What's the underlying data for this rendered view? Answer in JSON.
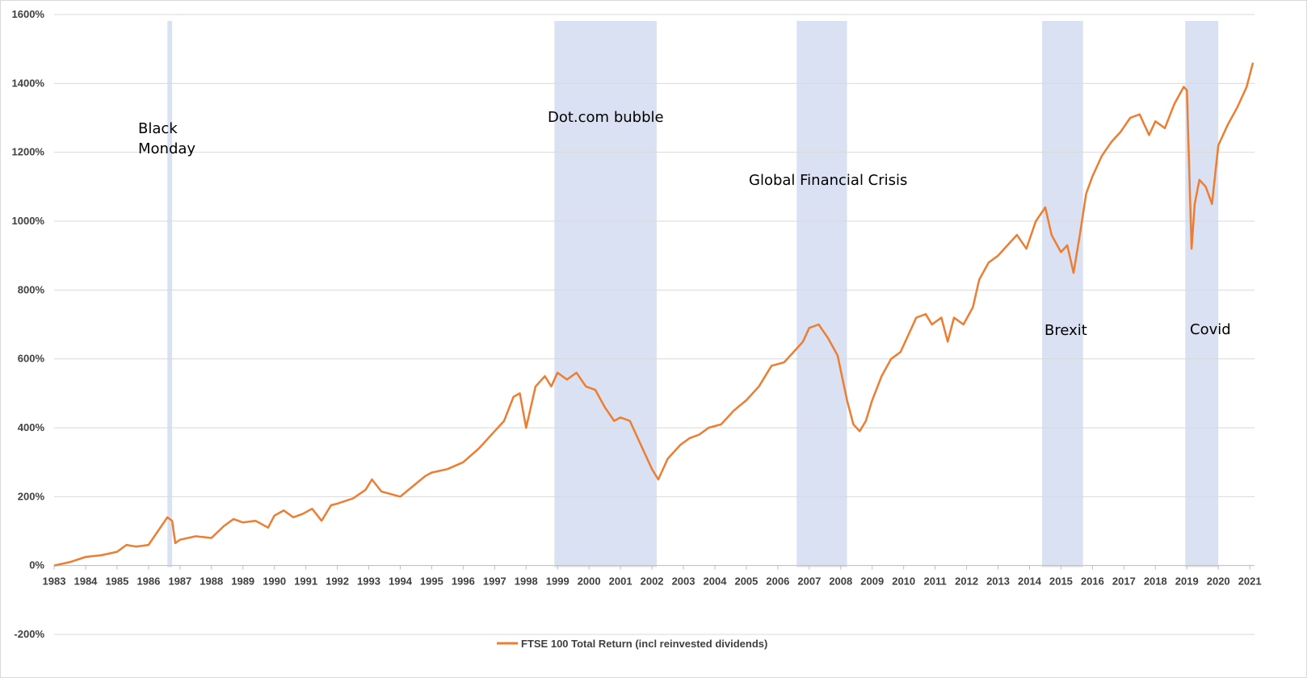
{
  "chart_data": {
    "type": "line",
    "title": "",
    "xlabel": "",
    "ylabel": "",
    "ylim": [
      -200,
      1600
    ],
    "xlim": [
      1983,
      2021.15
    ],
    "y_ticks": [
      -200,
      0,
      200,
      400,
      600,
      800,
      1000,
      1200,
      1400,
      1600
    ],
    "y_tick_labels": [
      "-200%",
      "0%",
      "200%",
      "400%",
      "600%",
      "800%",
      "1000%",
      "1200%",
      "1400%",
      "1600%"
    ],
    "x_ticks": [
      1983,
      1984,
      1985,
      1986,
      1987,
      1988,
      1989,
      1990,
      1991,
      1992,
      1993,
      1994,
      1995,
      1996,
      1997,
      1998,
      1999,
      2000,
      2001,
      2002,
      2003,
      2004,
      2005,
      2006,
      2007,
      2008,
      2009,
      2010,
      2011,
      2012,
      2013,
      2014,
      2015,
      2016,
      2017,
      2018,
      2019,
      2020,
      2021
    ],
    "x_tick_labels": [
      "1983",
      "1984",
      "1985",
      "1986",
      "1987",
      "1988",
      "1989",
      "1990",
      "1991",
      "1992",
      "1993",
      "1994",
      "1995",
      "1996",
      "1997",
      "1998",
      "1999",
      "2000",
      "2001",
      "2002",
      "2003",
      "2004",
      "2005",
      "2006",
      "2007",
      "2008",
      "2009",
      "2010",
      "2011",
      "2012",
      "2013",
      "2014",
      "2015",
      "2016",
      "2017",
      "2018",
      "2019",
      "2020",
      "2021"
    ],
    "grid": "horizontal",
    "legend_position": "bottom",
    "series": [
      {
        "name": "FTSE 100 Total Return (incl reinvested dividends)",
        "color": "#ED7D31",
        "x": [
          1983.0,
          1983.5,
          1984.0,
          1984.5,
          1985.0,
          1985.3,
          1985.6,
          1986.0,
          1986.3,
          1986.6,
          1986.75,
          1986.85,
          1987.0,
          1987.5,
          1988.0,
          1988.4,
          1988.7,
          1989.0,
          1989.4,
          1989.8,
          1990.0,
          1990.3,
          1990.6,
          1990.9,
          1991.2,
          1991.5,
          1991.8,
          1992.0,
          1992.5,
          1992.9,
          1993.1,
          1993.4,
          1993.8,
          1994.0,
          1994.4,
          1994.8,
          1995.0,
          1995.5,
          1996.0,
          1996.5,
          1997.0,
          1997.3,
          1997.6,
          1997.8,
          1998.0,
          1998.3,
          1998.6,
          1998.8,
          1999.0,
          1999.3,
          1999.6,
          1999.9,
          2000.2,
          2000.5,
          2000.8,
          2001.0,
          2001.3,
          2001.6,
          2001.8,
          2002.0,
          2002.2,
          2002.5,
          2002.9,
          2003.2,
          2003.5,
          2003.8,
          2004.2,
          2004.6,
          2005.0,
          2005.4,
          2005.8,
          2006.2,
          2006.5,
          2006.8,
          2007.0,
          2007.3,
          2007.6,
          2007.9,
          2008.2,
          2008.4,
          2008.6,
          2008.8,
          2009.0,
          2009.3,
          2009.6,
          2009.9,
          2010.1,
          2010.4,
          2010.7,
          2010.9,
          2011.2,
          2011.4,
          2011.6,
          2011.9,
          2012.2,
          2012.4,
          2012.7,
          2013.0,
          2013.3,
          2013.6,
          2013.9,
          2014.2,
          2014.5,
          2014.7,
          2015.0,
          2015.2,
          2015.4,
          2015.6,
          2015.8,
          2016.0,
          2016.3,
          2016.6,
          2016.9,
          2017.2,
          2017.5,
          2017.8,
          2018.0,
          2018.3,
          2018.6,
          2018.9,
          2019.0,
          2019.15,
          2019.25,
          2019.4,
          2019.6,
          2019.8,
          2020.0,
          2020.3,
          2020.6,
          2020.9,
          2021.1
        ],
        "values": [
          0,
          10,
          25,
          30,
          40,
          60,
          55,
          60,
          100,
          140,
          130,
          65,
          75,
          85,
          80,
          115,
          135,
          125,
          130,
          110,
          145,
          160,
          140,
          150,
          165,
          130,
          175,
          180,
          195,
          220,
          250,
          215,
          205,
          200,
          230,
          260,
          270,
          280,
          300,
          340,
          390,
          420,
          490,
          500,
          400,
          520,
          550,
          520,
          560,
          540,
          560,
          520,
          510,
          460,
          420,
          430,
          420,
          360,
          320,
          280,
          250,
          310,
          350,
          370,
          380,
          400,
          410,
          450,
          480,
          520,
          580,
          590,
          620,
          650,
          690,
          700,
          660,
          610,
          480,
          410,
          390,
          420,
          480,
          550,
          600,
          620,
          660,
          720,
          730,
          700,
          720,
          650,
          720,
          700,
          750,
          830,
          880,
          900,
          930,
          960,
          920,
          1000,
          1040,
          960,
          910,
          930,
          850,
          960,
          1080,
          1130,
          1190,
          1230,
          1260,
          1300,
          1310,
          1250,
          1290,
          1270,
          1340,
          1390,
          1380,
          920,
          1050,
          1120,
          1100,
          1050,
          1220,
          1280,
          1330,
          1390,
          1460
        ]
      }
    ],
    "shaded_regions": [
      {
        "label": "Black\nMonday",
        "x_start": 1986.6,
        "x_end": 1986.75
      },
      {
        "label": "Dot.com bubble",
        "x_start": 1998.9,
        "x_end": 2002.15
      },
      {
        "label": "Global Financial Crisis",
        "x_start": 2006.6,
        "x_end": 2008.2
      },
      {
        "label": "Brexit",
        "x_start": 2014.4,
        "x_end": 2015.7
      },
      {
        "label": "Covid",
        "x_start": 2018.95,
        "x_end": 2020.0
      }
    ],
    "annotations": {
      "black_monday_line1": "Black",
      "black_monday_line2": "Monday",
      "dotcom": "Dot.com bubble",
      "gfc": "Global Financial Crisis",
      "brexit": "Brexit",
      "covid": "Covid"
    },
    "shade_color": "#D9E1F2",
    "grid_color": "#D9D9D9"
  }
}
